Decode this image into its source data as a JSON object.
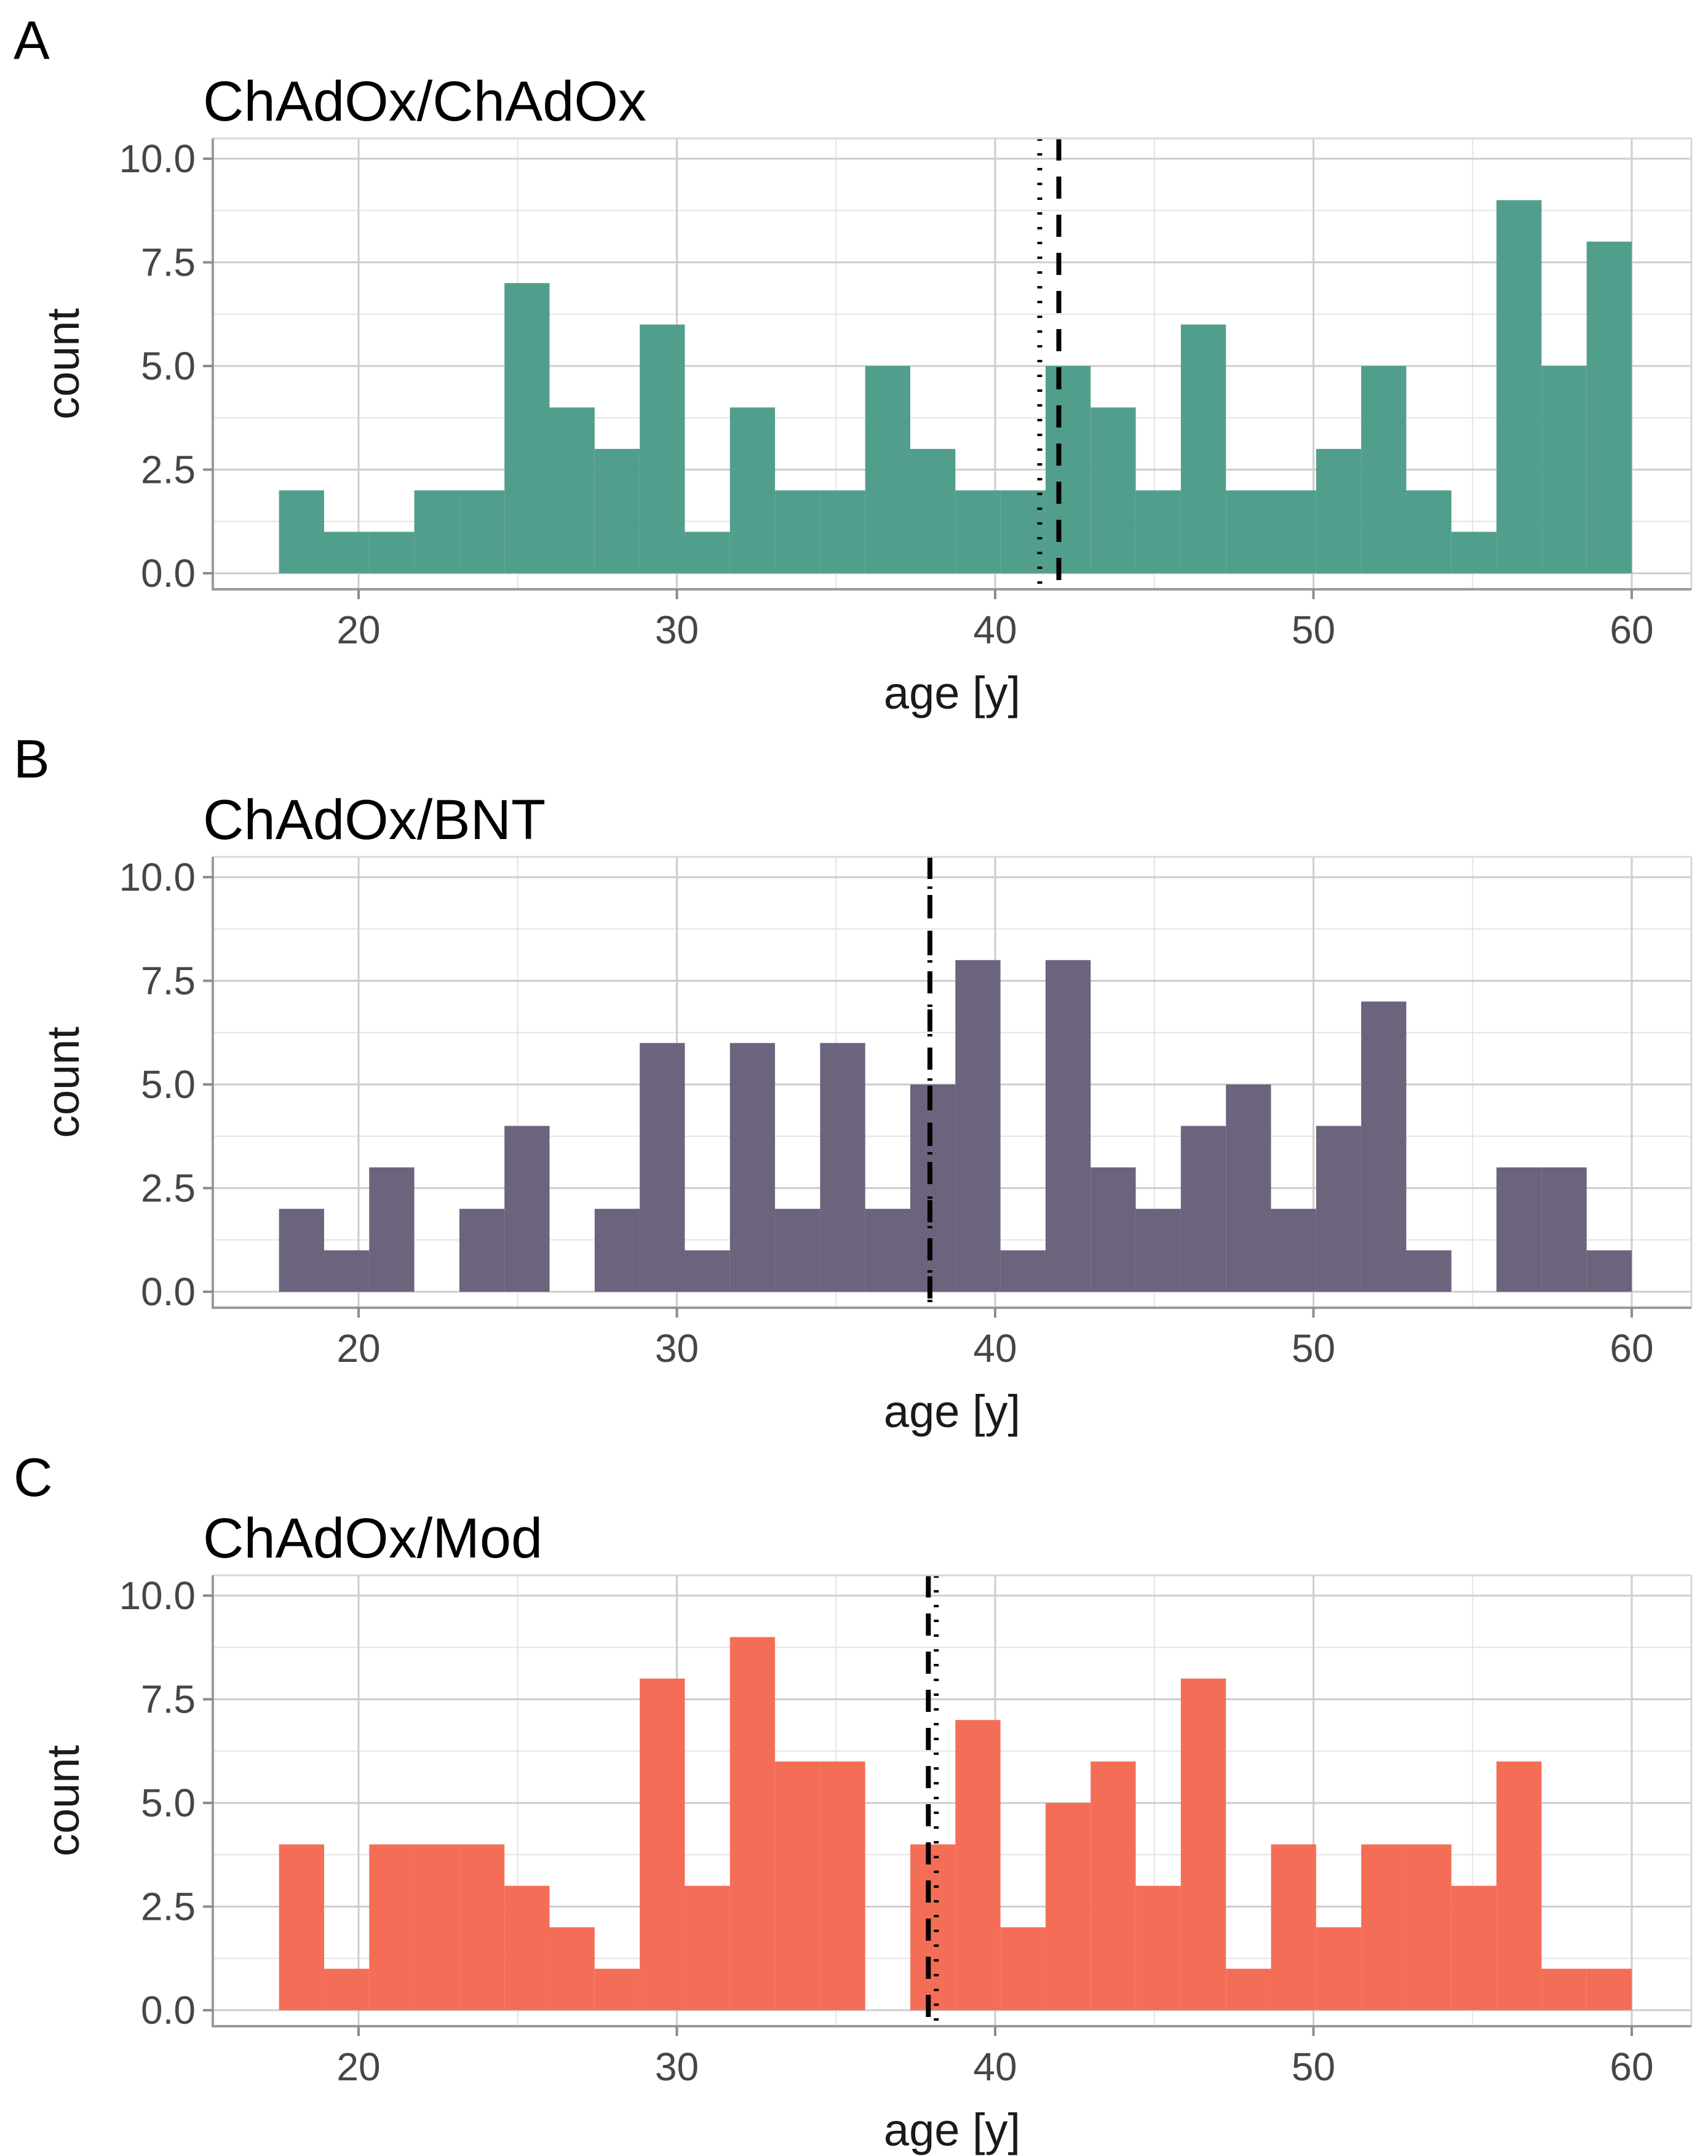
{
  "figure": {
    "background": "#ffffff",
    "grid_major_color": "#cdcdcd",
    "grid_minor_color": "#e4e4e4",
    "axis_line_color": "#9a9a9a",
    "panel_border_color": "#d8d8d8",
    "tick_mark_color": "#8c8c8c",
    "reference_line_color": "#000000"
  },
  "chart_data": [
    {
      "type": "bar",
      "subtype": "histogram",
      "panel_letter": "A",
      "title": "ChAdOx/ChAdOx",
      "xlabel": "age [y]",
      "ylabel": "count",
      "bar_color": "#529e8c",
      "bin_start": 17.5,
      "bin_width": 1.41667,
      "counts": [
        2,
        1,
        1,
        2,
        2,
        7,
        4,
        3,
        6,
        1,
        4,
        2,
        2,
        5,
        3,
        2,
        2,
        5,
        4,
        2,
        6,
        2,
        2,
        3,
        5,
        2,
        1,
        9,
        5,
        8
      ],
      "x_ticks": [
        20,
        30,
        40,
        50,
        60
      ],
      "x_minor": [
        25,
        35,
        45,
        55
      ],
      "y_ticks": [
        0,
        2.5,
        5,
        7.5,
        10
      ],
      "y_tick_labels": [
        "0.0",
        "2.5",
        "5.0",
        "7.5",
        "10.0"
      ],
      "y_minor": [
        1.25,
        3.75,
        6.25,
        8.75
      ],
      "xlim": [
        15.42,
        61.87
      ],
      "ylim": [
        -0.39,
        10.49
      ],
      "grid": true,
      "legend": "none",
      "vlines": [
        {
          "style": "dotted",
          "x": 41.4
        },
        {
          "style": "dashed",
          "x": 42.0
        }
      ]
    },
    {
      "type": "bar",
      "subtype": "histogram",
      "panel_letter": "B",
      "title": "ChAdOx/BNT",
      "xlabel": "age [y]",
      "ylabel": "count",
      "bar_color": "#6c637d",
      "bin_start": 17.5,
      "bin_width": 1.41667,
      "counts": [
        2,
        1,
        3,
        0,
        2,
        4,
        0,
        2,
        6,
        1,
        6,
        2,
        6,
        2,
        5,
        8,
        1,
        8,
        3,
        2,
        4,
        5,
        2,
        4,
        7,
        1,
        0,
        3,
        3,
        1
      ],
      "x_ticks": [
        20,
        30,
        40,
        50,
        60
      ],
      "x_minor": [
        25,
        35,
        45,
        55
      ],
      "y_ticks": [
        0,
        2.5,
        5,
        7.5,
        10
      ],
      "y_tick_labels": [
        "0.0",
        "2.5",
        "5.0",
        "7.5",
        "10.0"
      ],
      "y_minor": [
        1.25,
        3.75,
        6.25,
        8.75
      ],
      "xlim": [
        15.42,
        61.87
      ],
      "ylim": [
        -0.39,
        10.49
      ],
      "grid": true,
      "legend": "none",
      "vlines": [
        {
          "style": "dotted",
          "x": 37.95
        },
        {
          "style": "dashed",
          "x": 37.95
        }
      ]
    },
    {
      "type": "bar",
      "subtype": "histogram",
      "panel_letter": "C",
      "title": "ChAdOx/Mod",
      "xlabel": "age [y]",
      "ylabel": "count",
      "bar_color": "#f46e57",
      "bin_start": 17.5,
      "bin_width": 1.41667,
      "counts": [
        4,
        1,
        4,
        4,
        4,
        3,
        2,
        1,
        8,
        3,
        9,
        6,
        6,
        0,
        4,
        7,
        2,
        5,
        6,
        3,
        8,
        1,
        4,
        2,
        4,
        4,
        3,
        6,
        1,
        1
      ],
      "x_ticks": [
        20,
        30,
        40,
        50,
        60
      ],
      "x_minor": [
        25,
        35,
        45,
        55
      ],
      "y_ticks": [
        0,
        2.5,
        5,
        7.5,
        10
      ],
      "y_tick_labels": [
        "0.0",
        "2.5",
        "5.0",
        "7.5",
        "10.0"
      ],
      "y_minor": [
        1.25,
        3.75,
        6.25,
        8.75
      ],
      "xlim": [
        15.42,
        61.87
      ],
      "ylim": [
        -0.39,
        10.49
      ],
      "grid": true,
      "legend": "none",
      "vlines": [
        {
          "style": "dashed",
          "x": 37.9
        },
        {
          "style": "dotted",
          "x": 38.15
        }
      ]
    }
  ]
}
